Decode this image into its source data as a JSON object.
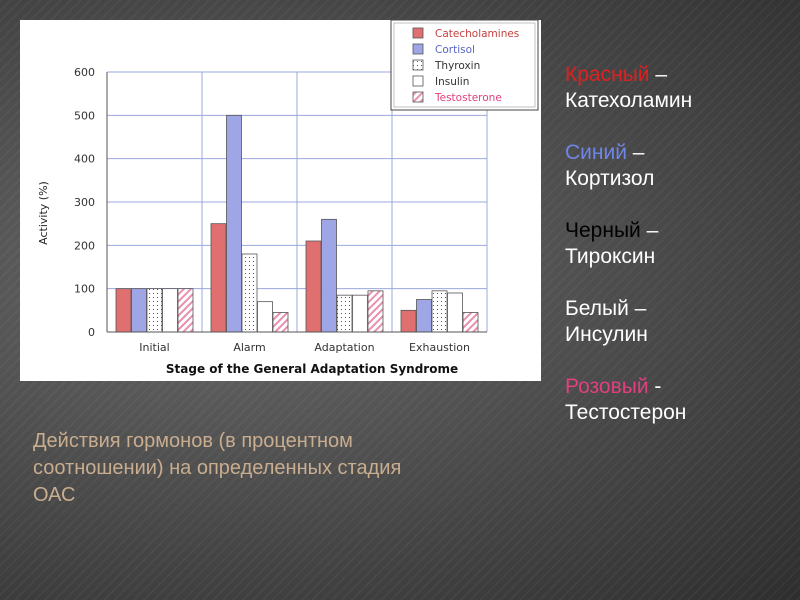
{
  "colors": {
    "catecholamines": "#e07070",
    "cortisol": "#9fa6e6",
    "legend_red": "#e02020",
    "legend_blue": "#6f86e8",
    "legend_pink": "#e0407f",
    "caption": "#c9ad8f"
  },
  "chart_data": {
    "type": "bar",
    "title": "",
    "xlabel": "Stage of the General Adaptation Syndrome",
    "ylabel": "Activity (%)",
    "ylim": [
      0,
      600
    ],
    "yticks": [
      0,
      100,
      200,
      300,
      400,
      500,
      600
    ],
    "grid": true,
    "legend_position": "top-right",
    "categories": [
      "Initial",
      "Alarm",
      "Adaptation",
      "Exhaustion"
    ],
    "series": [
      {
        "name": "Catecholamines",
        "color": "#e07070",
        "pattern": "solid",
        "values": [
          100,
          250,
          210,
          50
        ]
      },
      {
        "name": "Cortisol",
        "color": "#9fa6e6",
        "pattern": "solid",
        "values": [
          100,
          500,
          260,
          75
        ]
      },
      {
        "name": "Thyroxin",
        "color": "#ffffff",
        "pattern": "dots",
        "values": [
          100,
          180,
          85,
          95
        ]
      },
      {
        "name": "Insulin",
        "color": "#ffffff",
        "pattern": "none",
        "values": [
          100,
          70,
          85,
          90
        ]
      },
      {
        "name": "Testosterone",
        "color": "#f3c6d6",
        "pattern": "diagonal",
        "values": [
          100,
          45,
          95,
          45
        ]
      }
    ]
  },
  "side_legend": [
    {
      "color_word": "Красный",
      "dash": " –",
      "hormone": "Катехоламин",
      "color": "#e02020"
    },
    {
      "color_word": "Синий",
      "dash": " –",
      "hormone": "Кортизол",
      "color": "#6f86e8"
    },
    {
      "color_word": "Черный",
      "dash": " –",
      "hormone": "Тироксин",
      "color": "#000000"
    },
    {
      "color_word": "Белый",
      "dash": " –",
      "hormone": "Инсулин",
      "color": "#ffffff"
    },
    {
      "color_word": "Розовый",
      "dash": " -",
      "hormone": "Тестостерон",
      "color": "#e0407f"
    }
  ],
  "caption": "Действия гормонов (в процентном соотношении) на определенных стадия ОАС"
}
